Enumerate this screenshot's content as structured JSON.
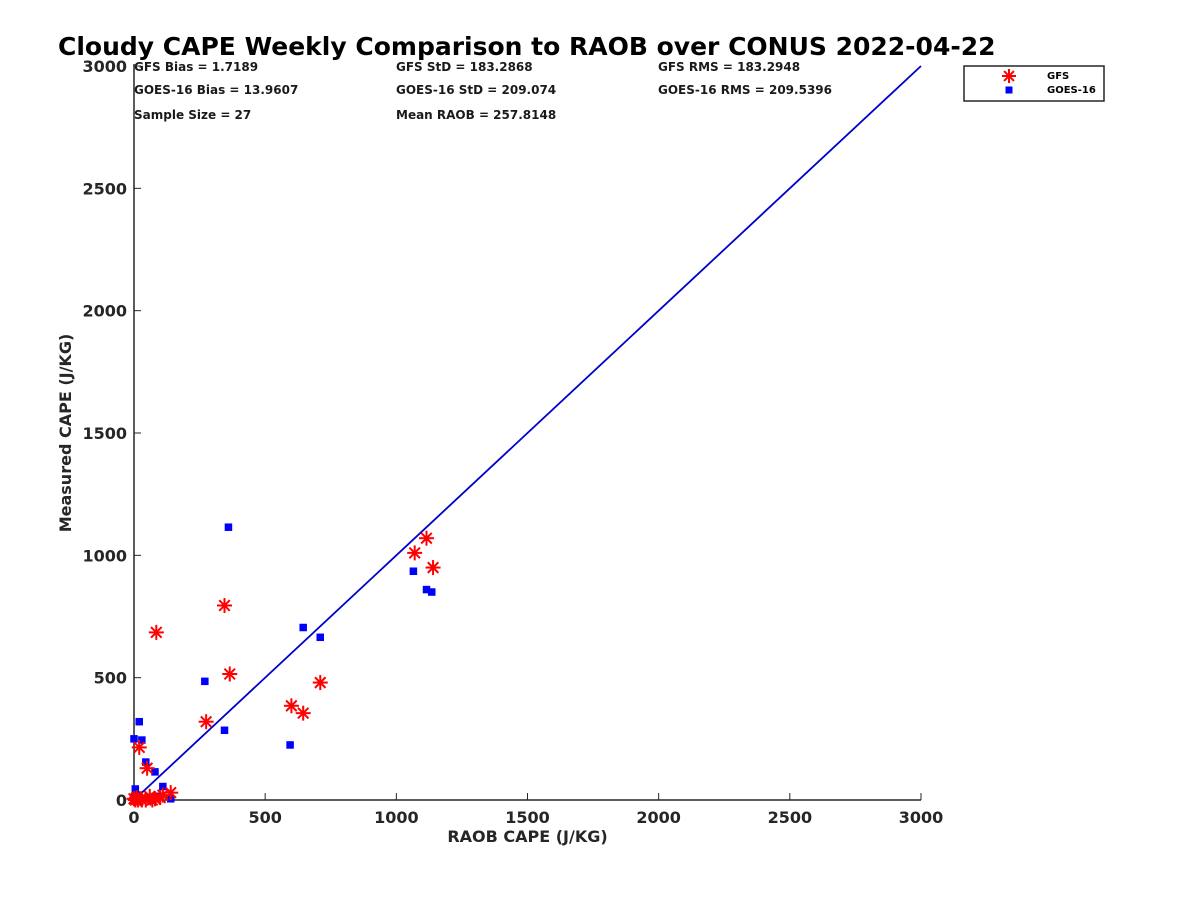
{
  "chart_data": {
    "type": "scatter",
    "title": "Cloudy CAPE Weekly Comparison to RAOB over CONUS 2022-04-22",
    "xlabel": "RAOB CAPE (J/KG)",
    "ylabel": "Measured CAPE (J/KG)",
    "xlim": [
      0,
      3000
    ],
    "ylim": [
      0,
      3000
    ],
    "xticks": [
      "0",
      "500",
      "1000",
      "1500",
      "2000",
      "2500",
      "3000"
    ],
    "yticks": [
      "0",
      "500",
      "1000",
      "1500",
      "2000",
      "2500",
      "3000"
    ],
    "grid": false,
    "legend_position": "outside-top-right",
    "stats": {
      "gfs_bias": "GFS Bias = 1.7189",
      "goes_bias": "GOES-16 Bias = 13.9607",
      "sample_size": "Sample Size = 27",
      "gfs_std": "GFS StD = 183.2868",
      "goes_std": "GOES-16 StD = 209.074",
      "mean_raob": "Mean RAOB = 257.8148",
      "gfs_rms": "GFS RMS = 183.2948",
      "goes_rms": "GOES-16 RMS = 209.5396"
    },
    "reference_line": {
      "x": [
        0,
        3000
      ],
      "y": [
        0,
        3000
      ],
      "color": "#0000cc"
    },
    "series": [
      {
        "name": "GFS",
        "marker": "asterisk",
        "color": "#ff0000",
        "x": [
          0,
          5,
          10,
          15,
          20,
          25,
          30,
          45,
          50,
          60,
          70,
          80,
          85,
          100,
          110,
          140,
          275,
          345,
          365,
          600,
          645,
          710,
          1070,
          1115,
          1140
        ],
        "y": [
          5,
          0,
          10,
          0,
          215,
          5,
          0,
          0,
          130,
          15,
          0,
          5,
          685,
          10,
          20,
          30,
          320,
          795,
          515,
          385,
          355,
          480,
          1010,
          1070,
          950
        ]
      },
      {
        "name": "GOES-16",
        "marker": "square",
        "color": "#0000ff",
        "x": [
          0,
          0,
          5,
          10,
          15,
          20,
          25,
          30,
          45,
          55,
          65,
          80,
          85,
          90,
          110,
          140,
          270,
          345,
          360,
          595,
          645,
          710,
          1065,
          1115,
          1135
        ],
        "y": [
          250,
          10,
          45,
          0,
          20,
          320,
          5,
          245,
          155,
          10,
          0,
          115,
          10,
          15,
          55,
          5,
          485,
          285,
          1115,
          225,
          705,
          665,
          935,
          860,
          850
        ]
      }
    ]
  }
}
